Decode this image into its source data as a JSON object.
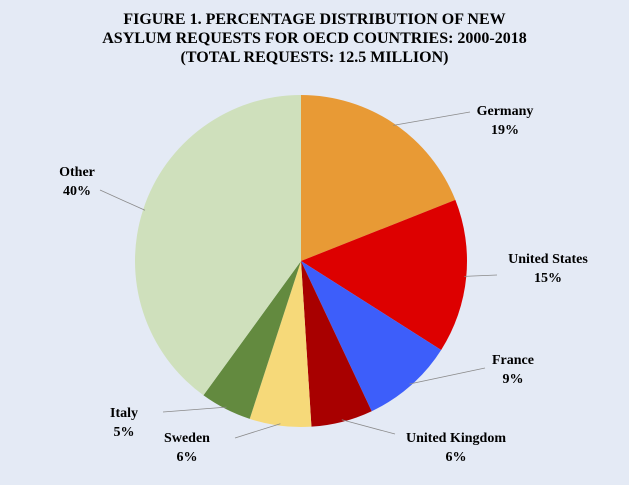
{
  "title_lines": [
    "FIGURE 1. PERCENTAGE DISTRIBUTION OF NEW",
    "ASYLUM REQUESTS FOR OECD COUNTRIES: 2000-2018",
    "(TOTAL REQUESTS: 12.5 MILLION)"
  ],
  "chart_data": {
    "type": "pie",
    "title": "FIGURE 1. PERCENTAGE DISTRIBUTION OF NEW ASYLUM REQUESTS FOR OECD COUNTRIES: 2000-2018 (TOTAL REQUESTS: 12.5 MILLION)",
    "start": "12 o'clock",
    "direction": "clockwise",
    "slices": [
      {
        "label": "Germany",
        "value": 19,
        "value_label": "19%",
        "color": "#e89a35"
      },
      {
        "label": "United States",
        "value": 15,
        "value_label": "15%",
        "color": "#dd0000"
      },
      {
        "label": "France",
        "value": 9,
        "value_label": "9%",
        "color": "#3d5efa"
      },
      {
        "label": "United Kingdom",
        "value": 6,
        "value_label": "6%",
        "color": "#a80000"
      },
      {
        "label": "Sweden",
        "value": 6,
        "value_label": "6%",
        "color": "#f6d979"
      },
      {
        "label": "Italy",
        "value": 5,
        "value_label": "5%",
        "color": "#638a3f"
      },
      {
        "label": "Other",
        "value": 40,
        "value_label": "40%",
        "color": "#cfe0bc"
      }
    ]
  }
}
